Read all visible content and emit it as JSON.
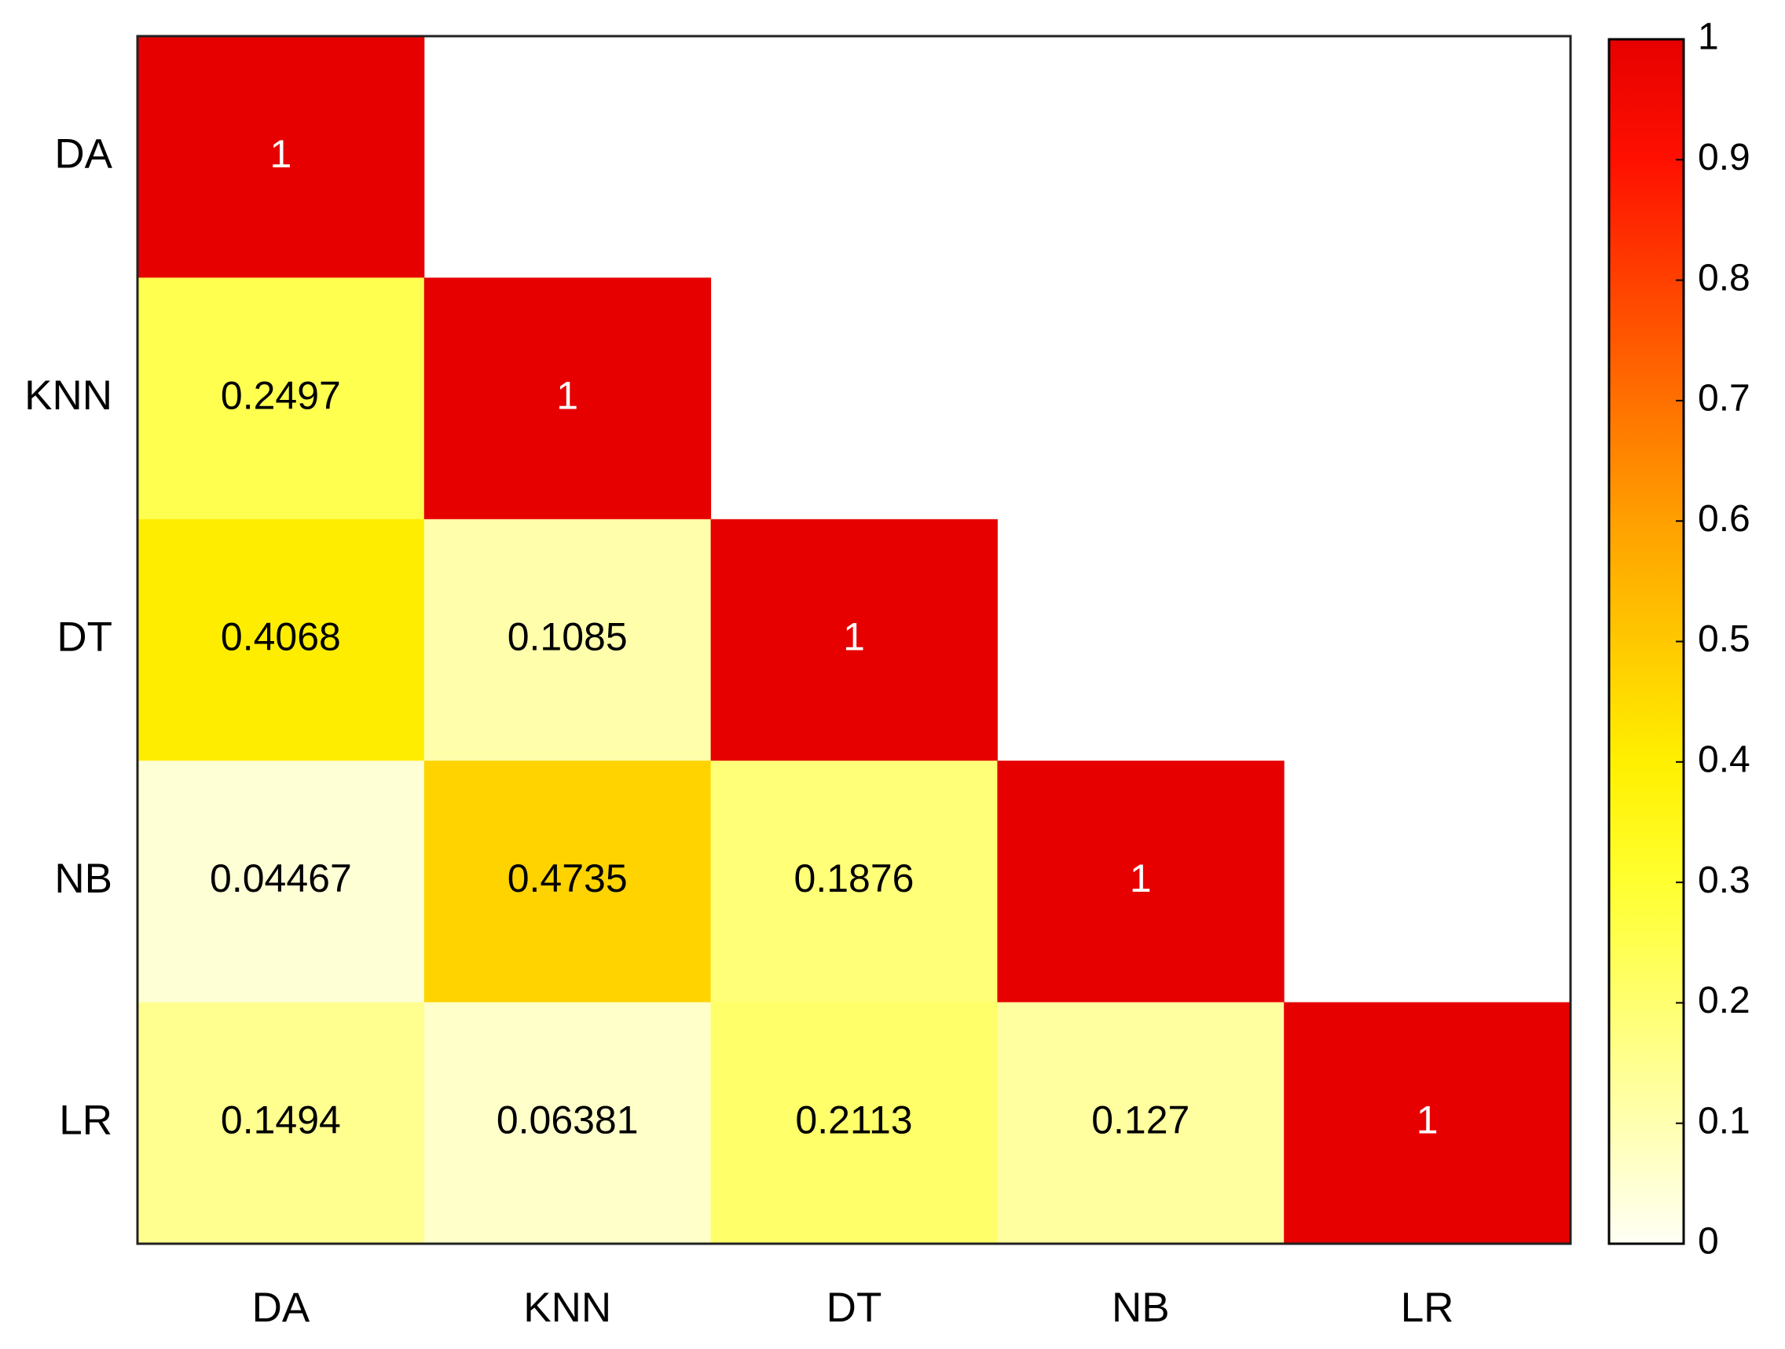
{
  "chart_data": {
    "type": "heatmap",
    "x_categories": [
      "DA",
      "KNN",
      "DT",
      "NB",
      "LR"
    ],
    "y_categories": [
      "DA",
      "KNN",
      "DT",
      "NB",
      "LR"
    ],
    "values": [
      [
        1,
        null,
        null,
        null,
        null
      ],
      [
        0.2497,
        1,
        null,
        null,
        null
      ],
      [
        0.4068,
        0.1085,
        1,
        null,
        null
      ],
      [
        0.04467,
        0.4735,
        0.1876,
        1,
        null
      ],
      [
        0.1494,
        0.06381,
        0.2113,
        0.127,
        1
      ]
    ],
    "colorscale": [
      "#fffff5",
      "#ffffb0",
      "#ffff70",
      "#ffff30",
      "#fff000",
      "#ffc800",
      "#ffa000",
      "#ff7000",
      "#ff4000",
      "#ff1000",
      "#e60000"
    ],
    "clim": [
      0,
      1
    ],
    "cticks": [
      0,
      0.1,
      0.2,
      0.3,
      0.4,
      0.5,
      0.6,
      0.7,
      0.8,
      0.9,
      1
    ]
  }
}
